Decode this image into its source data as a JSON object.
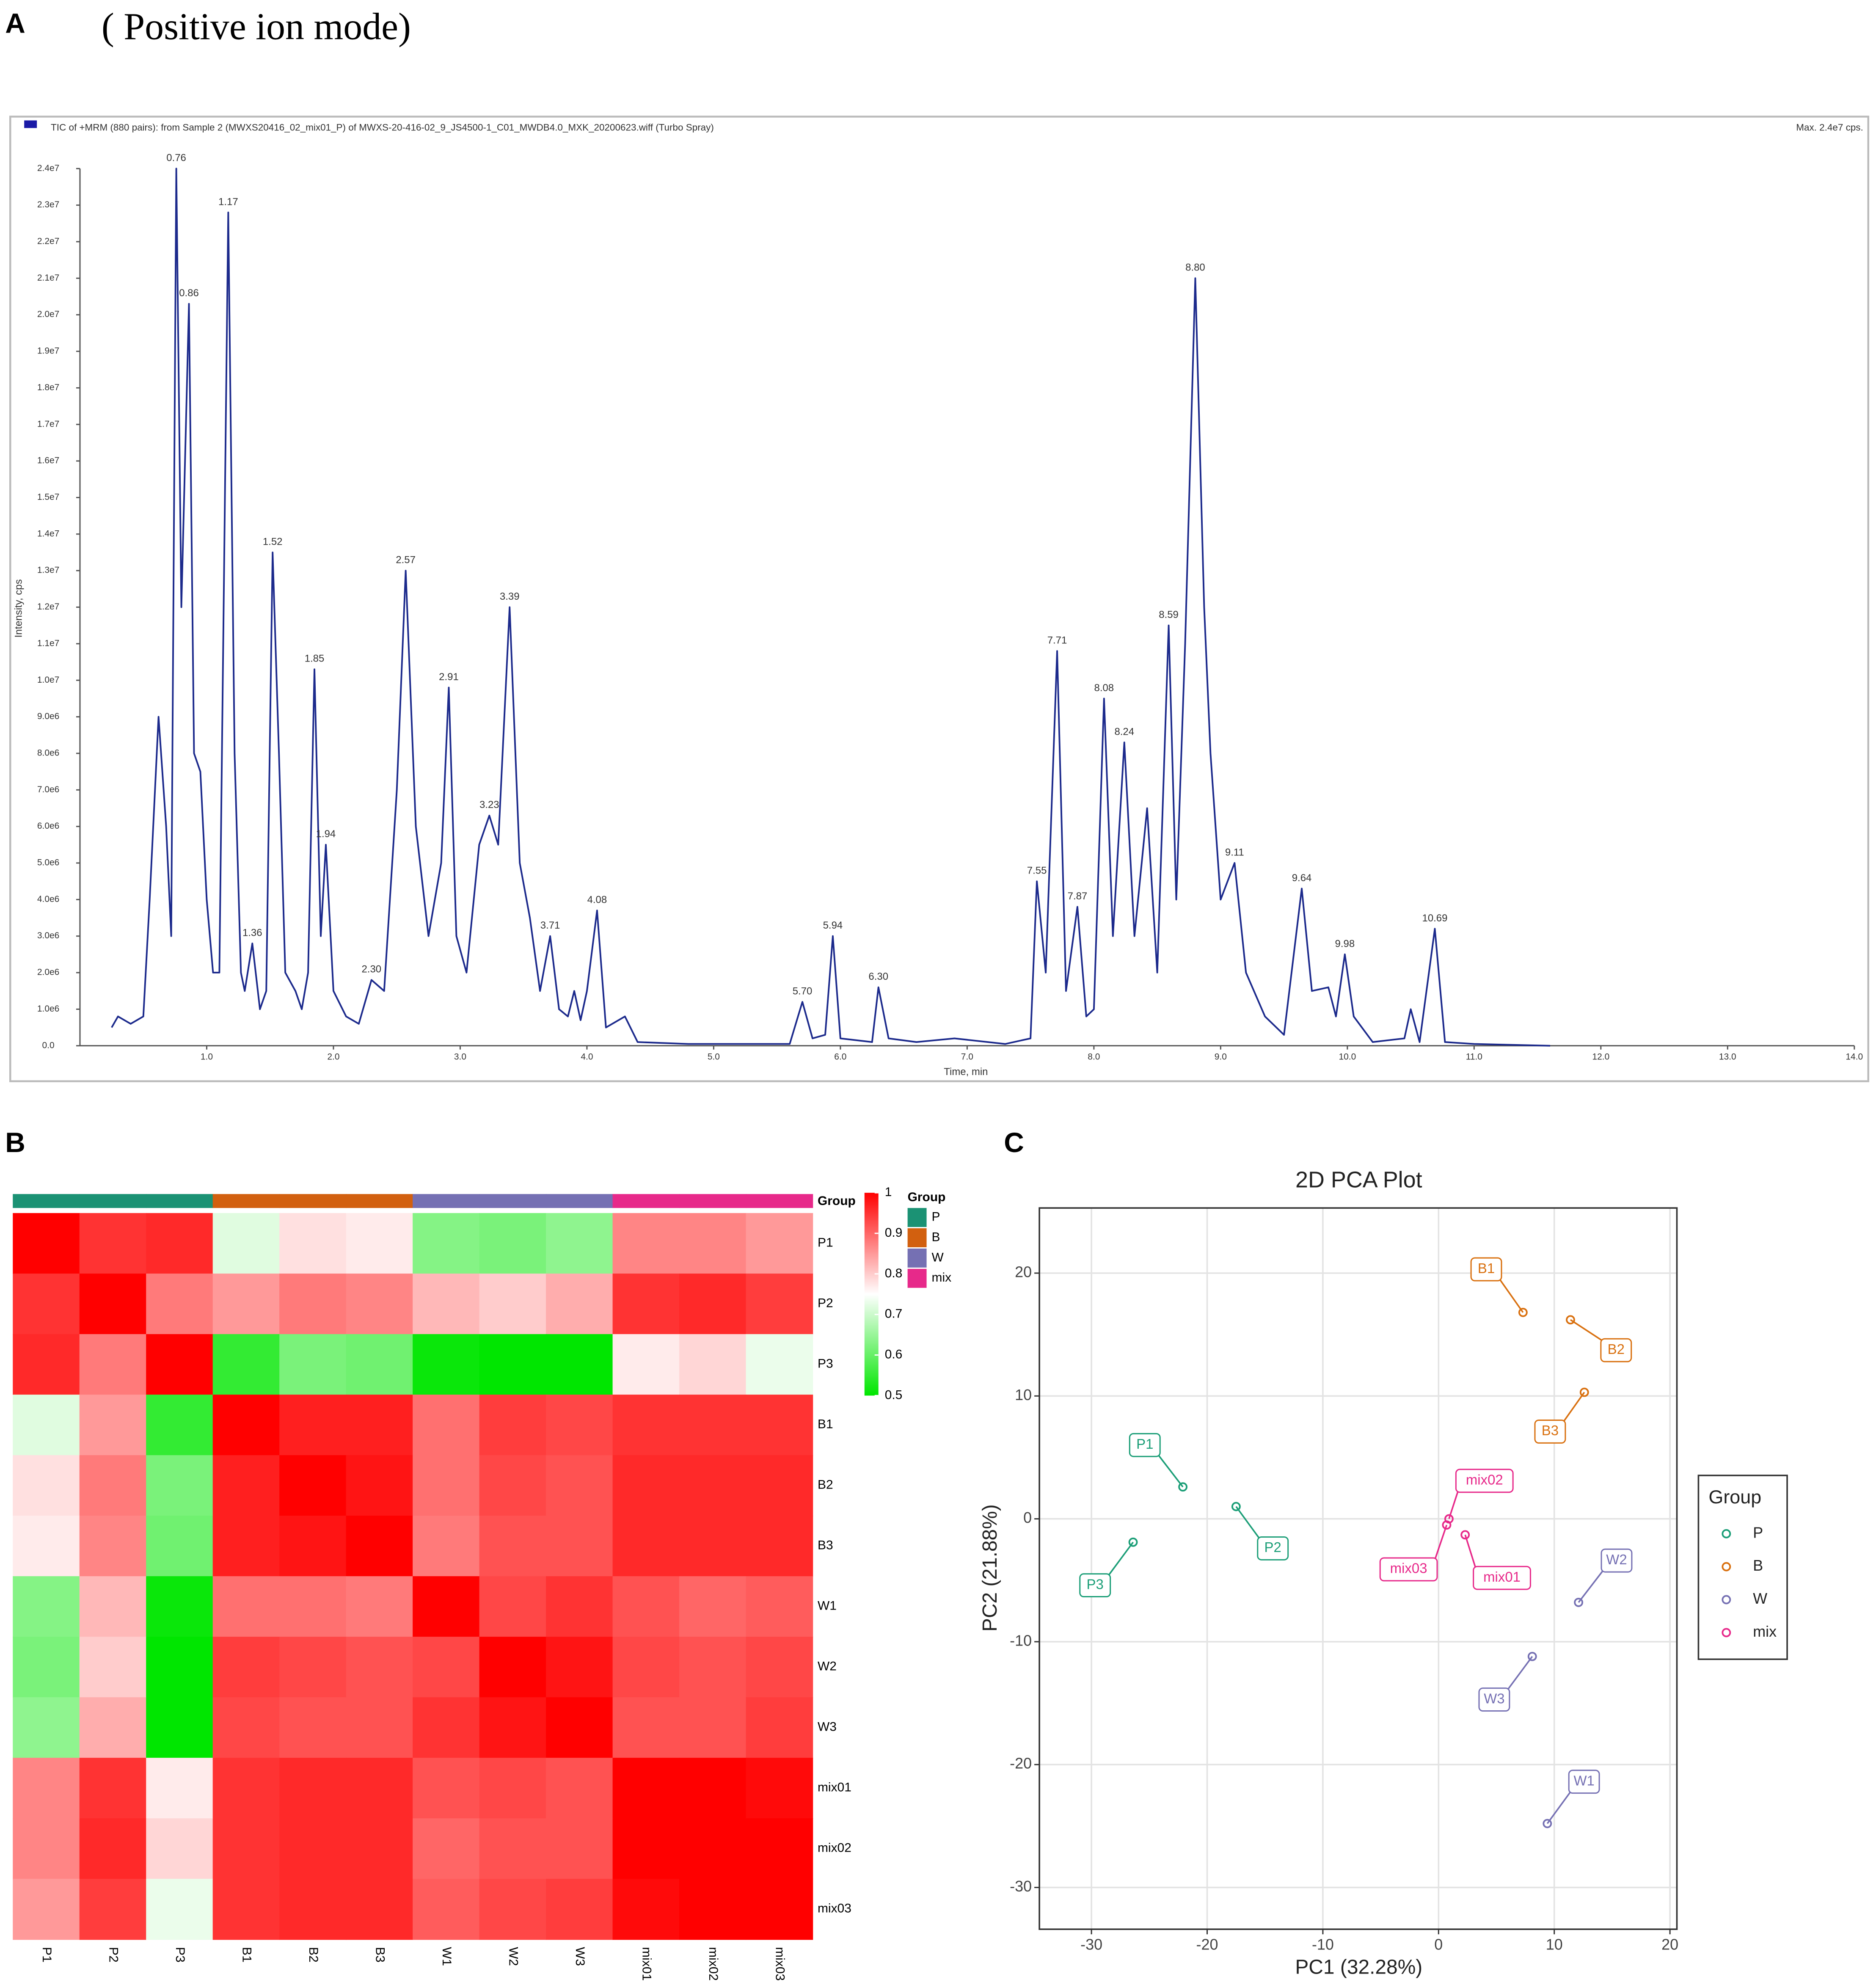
{
  "chart_data": [
    {
      "type": "line",
      "panel_label": "A",
      "heading": "( Positive ion mode)",
      "title": "TIC of +MRM (880 pairs): from Sample 2 (MWXS20416_02_mix01_P) of MWXS-20-416-02_9_JS4500-1_C01_MWDB4.0_MXK_20200623.wiff (Turbo Spray)",
      "note": "Max. 2.4e7 cps.",
      "xlabel": "Time, min",
      "ylabel": "Intensity, cps",
      "x": [
        0.25,
        0.3,
        0.4,
        0.5,
        0.55,
        0.62,
        0.68,
        0.72,
        0.76,
        0.8,
        0.86,
        0.9,
        0.95,
        1.0,
        1.05,
        1.1,
        1.17,
        1.22,
        1.27,
        1.3,
        1.36,
        1.42,
        1.47,
        1.52,
        1.57,
        1.62,
        1.7,
        1.75,
        1.8,
        1.85,
        1.9,
        1.94,
        2.0,
        2.1,
        2.2,
        2.3,
        2.4,
        2.5,
        2.57,
        2.65,
        2.75,
        2.85,
        2.91,
        2.97,
        3.05,
        3.15,
        3.23,
        3.3,
        3.39,
        3.47,
        3.55,
        3.63,
        3.71,
        3.78,
        3.85,
        3.9,
        3.95,
        4.0,
        4.08,
        4.15,
        4.3,
        4.4,
        4.8,
        5.6,
        5.7,
        5.78,
        5.88,
        5.94,
        6.0,
        6.25,
        6.3,
        6.38,
        6.6,
        6.9,
        7.3,
        7.5,
        7.55,
        7.62,
        7.71,
        7.78,
        7.87,
        7.94,
        8.0,
        8.08,
        8.15,
        8.24,
        8.32,
        8.42,
        8.5,
        8.59,
        8.65,
        8.72,
        8.8,
        8.87,
        8.92,
        9.0,
        9.11,
        9.2,
        9.35,
        9.5,
        9.64,
        9.72,
        9.85,
        9.91,
        9.98,
        10.05,
        10.2,
        10.45,
        10.5,
        10.57,
        10.69,
        10.77,
        11.0,
        11.6
      ],
      "series": [
        {
          "color": "#1c2a8c",
          "values": [
            500000,
            800000,
            600000,
            800000,
            4000000,
            9000000,
            6000000,
            3000000,
            24000000,
            12000000,
            20300000,
            8000000,
            7500000,
            4000000,
            2000000,
            2000000,
            22800000,
            8000000,
            2000000,
            1500000,
            2800000,
            1000000,
            1500000,
            13500000,
            8000000,
            2000000,
            1500000,
            1000000,
            2000000,
            10300000,
            3000000,
            5500000,
            1500000,
            800000,
            600000,
            1800000,
            1500000,
            7000000,
            13000000,
            6000000,
            3000000,
            5000000,
            9800000,
            3000000,
            2000000,
            5500000,
            6300000,
            5500000,
            12000000,
            5000000,
            3500000,
            1500000,
            3000000,
            1000000,
            800000,
            1500000,
            700000,
            1500000,
            3700000,
            500000,
            800000,
            100000,
            50000,
            50000,
            1200000,
            200000,
            300000,
            3000000,
            200000,
            100000,
            1600000,
            200000,
            100000,
            200000,
            50000,
            200000,
            4500000,
            2000000,
            10800000,
            1500000,
            3800000,
            800000,
            1000000,
            9500000,
            3000000,
            8300000,
            3000000,
            6500000,
            2000000,
            11500000,
            4000000,
            11000000,
            21000000,
            12000000,
            8000000,
            4000000,
            5000000,
            2000000,
            800000,
            300000,
            4300000,
            1500000,
            1600000,
            800000,
            2500000,
            800000,
            100000,
            200000,
            1000000,
            100000,
            3200000,
            100000,
            50000,
            0
          ]
        }
      ],
      "annotations": [
        {
          "text": "0.76",
          "x": 0.76,
          "y": 24000000
        },
        {
          "text": "0.86",
          "x": 0.86,
          "y": 20300000
        },
        {
          "text": "1.17",
          "x": 1.17,
          "y": 22800000
        },
        {
          "text": "1.36",
          "x": 1.36,
          "y": 2800000
        },
        {
          "text": "1.52",
          "x": 1.52,
          "y": 13500000
        },
        {
          "text": "1.85",
          "x": 1.85,
          "y": 10300000
        },
        {
          "text": "1.94",
          "x": 1.94,
          "y": 5500000
        },
        {
          "text": "2.30",
          "x": 2.3,
          "y": 1800000
        },
        {
          "text": "2.57",
          "x": 2.57,
          "y": 13000000
        },
        {
          "text": "2.91",
          "x": 2.91,
          "y": 9800000
        },
        {
          "text": "3.23",
          "x": 3.23,
          "y": 6300000
        },
        {
          "text": "3.39",
          "x": 3.39,
          "y": 12000000
        },
        {
          "text": "3.71",
          "x": 3.71,
          "y": 3000000
        },
        {
          "text": "4.08",
          "x": 4.08,
          "y": 3700000
        },
        {
          "text": "5.70",
          "x": 5.7,
          "y": 1200000
        },
        {
          "text": "5.94",
          "x": 5.94,
          "y": 3000000
        },
        {
          "text": "6.30",
          "x": 6.3,
          "y": 1600000
        },
        {
          "text": "7.55",
          "x": 7.55,
          "y": 4500000
        },
        {
          "text": "7.71",
          "x": 7.71,
          "y": 10800000
        },
        {
          "text": "7.87",
          "x": 7.87,
          "y": 3800000
        },
        {
          "text": "8.08",
          "x": 8.08,
          "y": 9500000
        },
        {
          "text": "8.24",
          "x": 8.24,
          "y": 8300000
        },
        {
          "text": "8.59",
          "x": 8.59,
          "y": 11500000
        },
        {
          "text": "8.80",
          "x": 8.8,
          "y": 21000000
        },
        {
          "text": "9.11",
          "x": 9.11,
          "y": 5000000
        },
        {
          "text": "9.64",
          "x": 9.64,
          "y": 4300000
        },
        {
          "text": "9.98",
          "x": 9.98,
          "y": 2500000
        },
        {
          "text": "10.69",
          "x": 10.69,
          "y": 3200000
        }
      ],
      "xlim": [
        0,
        14
      ],
      "xticks": [
        {
          "value": 1,
          "label": "1.0"
        },
        {
          "value": 2,
          "label": "2.0"
        },
        {
          "value": 3,
          "label": "3.0"
        },
        {
          "value": 4,
          "label": "4.0"
        },
        {
          "value": 5,
          "label": "5.0"
        },
        {
          "value": 6,
          "label": "6.0"
        },
        {
          "value": 7,
          "label": "7.0"
        },
        {
          "value": 8,
          "label": "8.0"
        },
        {
          "value": 9,
          "label": "9.0"
        },
        {
          "value": 10,
          "label": "10.0"
        },
        {
          "value": 11,
          "label": "11.0"
        },
        {
          "value": 12,
          "label": "12.0"
        },
        {
          "value": 13,
          "label": "13.0"
        },
        {
          "value": 14,
          "label": "14.0"
        }
      ],
      "ylim": [
        0,
        24000000
      ],
      "yticks": [
        {
          "value": 0,
          "label": "0.0"
        },
        {
          "value": 1000000,
          "label": "1.0e6"
        },
        {
          "value": 2000000,
          "label": "2.0e6"
        },
        {
          "value": 3000000,
          "label": "3.0e6"
        },
        {
          "value": 4000000,
          "label": "4.0e6"
        },
        {
          "value": 5000000,
          "label": "5.0e6"
        },
        {
          "value": 6000000,
          "label": "6.0e6"
        },
        {
          "value": 7000000,
          "label": "7.0e6"
        },
        {
          "value": 8000000,
          "label": "8.0e6"
        },
        {
          "value": 9000000,
          "label": "9.0e6"
        },
        {
          "value": 10000000,
          "label": "1.0e7"
        },
        {
          "value": 11000000,
          "label": "1.1e7"
        },
        {
          "value": 12000000,
          "label": "1.2e7"
        },
        {
          "value": 13000000,
          "label": "1.3e7"
        },
        {
          "value": 14000000,
          "label": "1.4e7"
        },
        {
          "value": 15000000,
          "label": "1.5e7"
        },
        {
          "value": 16000000,
          "label": "1.6e7"
        },
        {
          "value": 17000000,
          "label": "1.7e7"
        },
        {
          "value": 18000000,
          "label": "1.8e7"
        },
        {
          "value": 19000000,
          "label": "1.9e7"
        },
        {
          "value": 20000000,
          "label": "2.0e7"
        },
        {
          "value": 21000000,
          "label": "2.1e7"
        },
        {
          "value": 22000000,
          "label": "2.2e7"
        },
        {
          "value": 23000000,
          "label": "2.3e7"
        },
        {
          "value": 24000000,
          "label": "2.4e7"
        }
      ],
      "grid": false
    },
    {
      "type": "heatmap",
      "panel_label": "B",
      "categories": [
        "P1",
        "P2",
        "P3",
        "B1",
        "B2",
        "B3",
        "W1",
        "W2",
        "W3",
        "mix01",
        "mix02",
        "mix03"
      ],
      "values": [
        [
          1,
          0.95,
          0.96,
          0.72,
          0.78,
          0.77,
          0.63,
          0.62,
          0.64,
          0.87,
          0.87,
          0.85
        ],
        [
          0.95,
          1,
          0.88,
          0.85,
          0.88,
          0.87,
          0.82,
          0.8,
          0.83,
          0.95,
          0.96,
          0.94
        ],
        [
          0.96,
          0.88,
          1,
          0.55,
          0.62,
          0.61,
          0.51,
          0.5,
          0.5,
          0.77,
          0.79,
          0.73
        ],
        [
          0.72,
          0.85,
          0.55,
          1,
          0.97,
          0.97,
          0.89,
          0.94,
          0.93,
          0.95,
          0.95,
          0.95
        ],
        [
          0.78,
          0.88,
          0.62,
          0.97,
          1,
          0.98,
          0.89,
          0.93,
          0.92,
          0.96,
          0.96,
          0.96
        ],
        [
          0.77,
          0.87,
          0.61,
          0.97,
          0.98,
          1,
          0.88,
          0.92,
          0.92,
          0.96,
          0.96,
          0.96
        ],
        [
          0.63,
          0.82,
          0.51,
          0.89,
          0.89,
          0.88,
          1,
          0.93,
          0.95,
          0.92,
          0.9,
          0.91
        ],
        [
          0.62,
          0.8,
          0.5,
          0.94,
          0.93,
          0.92,
          0.93,
          1,
          0.98,
          0.93,
          0.92,
          0.93
        ],
        [
          0.64,
          0.83,
          0.5,
          0.93,
          0.92,
          0.92,
          0.95,
          0.98,
          1,
          0.92,
          0.92,
          0.94
        ],
        [
          0.87,
          0.95,
          0.77,
          0.95,
          0.96,
          0.96,
          0.92,
          0.93,
          0.92,
          1,
          1,
          0.99
        ],
        [
          0.87,
          0.96,
          0.79,
          0.95,
          0.96,
          0.96,
          0.9,
          0.92,
          0.92,
          1,
          1,
          1
        ],
        [
          0.85,
          0.94,
          0.73,
          0.95,
          0.96,
          0.96,
          0.91,
          0.93,
          0.94,
          0.99,
          1,
          1
        ]
      ],
      "zlim": [
        0.5,
        1
      ],
      "colorscale": [
        "#00e600",
        "#ffffff",
        "#ff0000"
      ],
      "colorbar_ticks": [
        1,
        0.9,
        0.8,
        0.7,
        0.6,
        0.5
      ],
      "annotation_title": "Group",
      "column_colors": [
        "#1b9274",
        "#1b9274",
        "#1b9274",
        "#d2600f",
        "#d2600f",
        "#d2600f",
        "#7570b3",
        "#7570b3",
        "#7570b3",
        "#e7298a",
        "#e7298a",
        "#e7298a"
      ],
      "legend": {
        "title": "Group",
        "items": [
          {
            "name": "P",
            "color": "#1b9274"
          },
          {
            "name": "B",
            "color": "#d2600f"
          },
          {
            "name": "W",
            "color": "#7570b3"
          },
          {
            "name": "mix",
            "color": "#e7298a"
          }
        ]
      }
    },
    {
      "type": "scatter",
      "panel_label": "C",
      "title": "2D PCA Plot",
      "xlabel": "PC1 (32.28%)",
      "ylabel": "PC2 (21.88%)",
      "legend_title": "Group",
      "legend": "right",
      "series": [
        {
          "name": "P",
          "color": "#1b9e77",
          "x": [
            -22.1,
            -17.5,
            -26.4
          ],
          "values": [
            2.6,
            1.0,
            -1.9
          ],
          "labels": [
            "P1",
            "P2",
            "P3"
          ]
        },
        {
          "name": "B",
          "color": "#d9700f",
          "x": [
            7.3,
            11.4,
            12.6
          ],
          "values": [
            16.8,
            16.2,
            10.3
          ],
          "labels": [
            "B1",
            "B2",
            "B3"
          ]
        },
        {
          "name": "W",
          "color": "#7570b3",
          "x": [
            9.4,
            12.1,
            8.1
          ],
          "values": [
            -24.8,
            -6.8,
            -11.2
          ],
          "labels": [
            "W1",
            "W2",
            "W3"
          ]
        },
        {
          "name": "mix",
          "color": "#e7298a",
          "x": [
            2.3,
            0.9,
            0.7
          ],
          "values": [
            -1.3,
            0.0,
            -0.5
          ],
          "labels": [
            "mix01",
            "mix02",
            "mix03"
          ]
        }
      ],
      "xlim": [
        -34.5,
        20.6
      ],
      "xticks": [
        -30,
        -20,
        -10,
        0,
        10,
        20
      ],
      "ylim": [
        -33.4,
        25.3
      ],
      "yticks": [
        -30,
        -20,
        -10,
        0,
        10,
        20
      ],
      "grid": true
    }
  ]
}
